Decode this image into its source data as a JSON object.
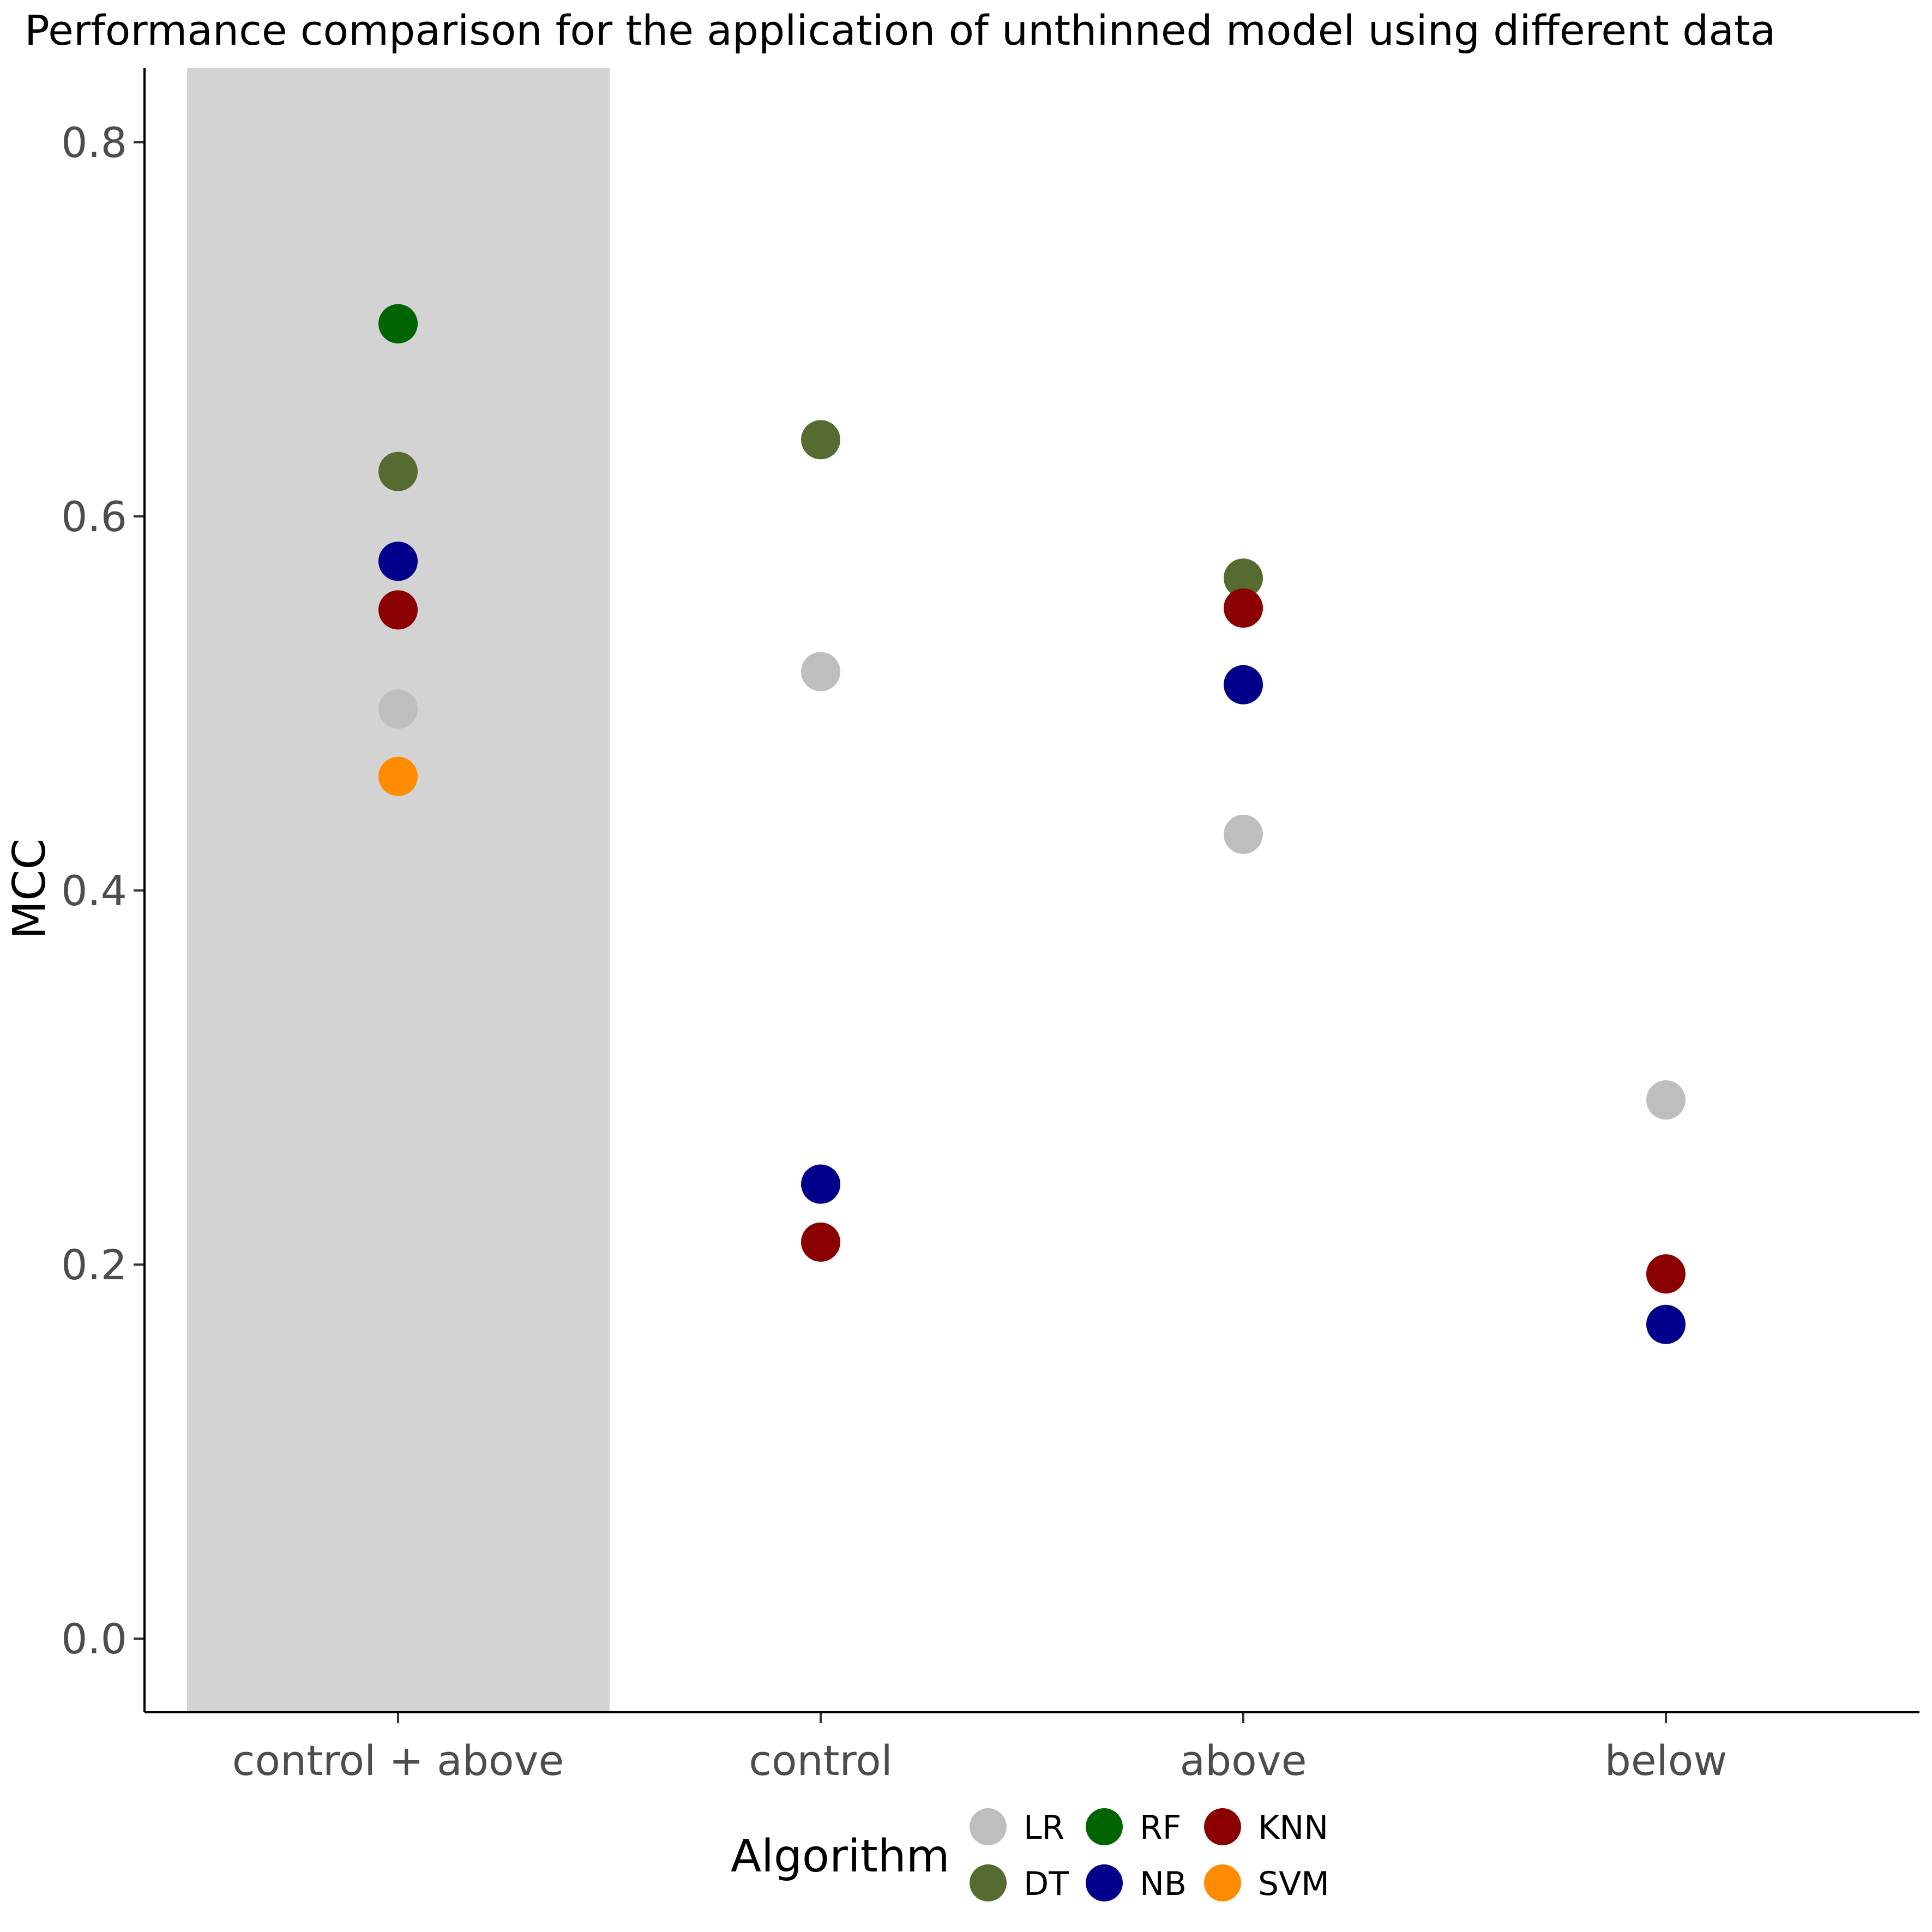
{
  "chart_data": {
    "type": "scatter",
    "title": "Performance comparison for the application of unthinned model using different data",
    "xlabel": "",
    "ylabel": "MCC",
    "categories": [
      "control + above",
      "control",
      "above",
      "below"
    ],
    "highlighted_category": "control + above",
    "highlight_color": "#d3d3d3",
    "ylim": [
      -0.04,
      0.84
    ],
    "yticks": [
      0.0,
      0.2,
      0.4,
      0.6,
      0.8
    ],
    "ytick_labels": [
      "0.0",
      "0.2",
      "0.4",
      "0.6",
      "0.8"
    ],
    "grid": false,
    "legend": {
      "title": "Algorithm",
      "position": "bottom"
    },
    "series": [
      {
        "name": "LR",
        "color": "#bebebe",
        "values": [
          0.497,
          0.517,
          0.43,
          0.288
        ]
      },
      {
        "name": "DT",
        "color": "#556b2f",
        "values": [
          0.624,
          0.641,
          0.567,
          null
        ]
      },
      {
        "name": "RF",
        "color": "#006400",
        "values": [
          0.703,
          null,
          null,
          null
        ]
      },
      {
        "name": "NB",
        "color": "#00008b",
        "values": [
          0.576,
          0.243,
          0.51,
          0.168
        ]
      },
      {
        "name": "KNN",
        "color": "#8b0000",
        "values": [
          0.55,
          0.212,
          0.551,
          0.195
        ]
      },
      {
        "name": "SVM",
        "color": "#ff8c00",
        "values": [
          0.461,
          null,
          null,
          null
        ]
      }
    ]
  }
}
